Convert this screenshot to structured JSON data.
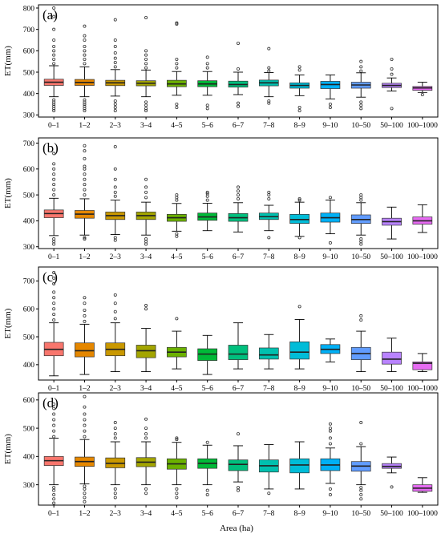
{
  "figure": {
    "xlabel": "Area (ha)",
    "ylabel": "ET(mm)"
  },
  "chart_data": [
    {
      "type": "box",
      "panel_label": "(a)",
      "categories": [
        "0–1",
        "1–2",
        "2–3",
        "3–4",
        "4–5",
        "5–6",
        "6–7",
        "7–8",
        "8–9",
        "9–10",
        "10–50",
        "50–100",
        "100–1000"
      ],
      "ylabel": "ET(mm)",
      "ylim": [
        290,
        815
      ],
      "yticks": [
        300,
        400,
        500,
        600,
        700,
        800
      ],
      "boxes": [
        {
          "low": 385,
          "q1": 438,
          "median": 453,
          "q3": 467,
          "high": 530,
          "outliers": [
            320,
            330,
            340,
            350,
            360,
            370,
            540,
            560,
            580,
            600,
            620,
            650,
            700,
            760,
            800
          ]
        },
        {
          "low": 385,
          "q1": 438,
          "median": 452,
          "q3": 466,
          "high": 525,
          "outliers": [
            320,
            330,
            340,
            350,
            360,
            370,
            540,
            560,
            580,
            600,
            620,
            650,
            670,
            715
          ]
        },
        {
          "low": 388,
          "q1": 437,
          "median": 450,
          "q3": 462,
          "high": 512,
          "outliers": [
            320,
            335,
            350,
            365,
            525,
            545,
            565,
            590,
            620,
            650,
            745
          ]
        },
        {
          "low": 385,
          "q1": 436,
          "median": 448,
          "q3": 460,
          "high": 510,
          "outliers": [
            320,
            330,
            345,
            360,
            520,
            540,
            560,
            580,
            600,
            755
          ]
        },
        {
          "low": 392,
          "q1": 432,
          "median": 445,
          "q3": 462,
          "high": 503,
          "outliers": [
            335,
            350,
            520,
            540,
            560,
            725,
            730
          ]
        },
        {
          "low": 392,
          "q1": 432,
          "median": 445,
          "q3": 460,
          "high": 503,
          "outliers": [
            330,
            345,
            520,
            540,
            570
          ]
        },
        {
          "low": 395,
          "q1": 430,
          "median": 442,
          "q3": 458,
          "high": 500,
          "outliers": [
            340,
            355,
            515,
            635
          ]
        },
        {
          "low": 385,
          "q1": 436,
          "median": 450,
          "q3": 463,
          "high": 498,
          "outliers": [
            355,
            365,
            505,
            520,
            610
          ]
        },
        {
          "low": 390,
          "q1": 425,
          "median": 438,
          "q3": 450,
          "high": 487,
          "outliers": [
            320,
            335,
            510,
            525
          ]
        },
        {
          "low": 375,
          "q1": 423,
          "median": 442,
          "q3": 457,
          "high": 487,
          "outliers": [
            335,
            350
          ]
        },
        {
          "low": 383,
          "q1": 425,
          "median": 440,
          "q3": 453,
          "high": 497,
          "outliers": [
            330,
            345,
            360,
            505,
            525,
            550
          ]
        },
        {
          "low": 412,
          "q1": 428,
          "median": 438,
          "q3": 448,
          "high": 473,
          "outliers": [
            330,
            490,
            515,
            560
          ]
        },
        {
          "low": 405,
          "q1": 415,
          "median": 426,
          "q3": 433,
          "high": 453,
          "outliers": [
            395
          ]
        }
      ]
    },
    {
      "type": "box",
      "panel_label": "(b)",
      "categories": [
        "0–1",
        "1–2",
        "2–3",
        "3–4",
        "4–5",
        "5–6",
        "6–7",
        "7–8",
        "8–9",
        "9–10",
        "10–50",
        "50–100",
        "100–1000"
      ],
      "ylabel": "ET(mm)",
      "ylim": [
        293,
        720
      ],
      "yticks": [
        300,
        400,
        500,
        600,
        700
      ],
      "boxes": [
        {
          "low": 343,
          "q1": 412,
          "median": 428,
          "q3": 442,
          "high": 487,
          "outliers": [
            310,
            320,
            330,
            500,
            520,
            540,
            560,
            580,
            600,
            620,
            660
          ]
        },
        {
          "low": 345,
          "q1": 410,
          "median": 426,
          "q3": 440,
          "high": 485,
          "outliers": [
            330,
            335,
            500,
            520,
            540,
            560,
            580,
            600,
            610,
            640,
            670,
            690
          ]
        },
        {
          "low": 347,
          "q1": 405,
          "median": 420,
          "q3": 434,
          "high": 480,
          "outliers": [
            325,
            335,
            495,
            510,
            530,
            560,
            600,
            686
          ]
        },
        {
          "low": 345,
          "q1": 405,
          "median": 420,
          "q3": 434,
          "high": 472,
          "outliers": [
            310,
            320,
            330,
            490,
            510,
            530,
            560
          ]
        },
        {
          "low": 360,
          "q1": 398,
          "median": 412,
          "q3": 425,
          "high": 467,
          "outliers": [
            340,
            350,
            480,
            490,
            500
          ]
        },
        {
          "low": 362,
          "q1": 402,
          "median": 415,
          "q3": 430,
          "high": 468,
          "outliers": [
            480,
            495,
            505,
            510
          ]
        },
        {
          "low": 357,
          "q1": 398,
          "median": 412,
          "q3": 428,
          "high": 470,
          "outliers": [
            485,
            500,
            515,
            530
          ]
        },
        {
          "low": 362,
          "q1": 405,
          "median": 416,
          "q3": 430,
          "high": 460,
          "outliers": [
            335,
            485,
            500,
            510
          ]
        },
        {
          "low": 340,
          "q1": 390,
          "median": 405,
          "q3": 425,
          "high": 472,
          "outliers": [
            335,
            480,
            485
          ]
        },
        {
          "low": 350,
          "q1": 395,
          "median": 412,
          "q3": 430,
          "high": 480,
          "outliers": [
            315,
            490
          ]
        },
        {
          "low": 345,
          "q1": 390,
          "median": 405,
          "q3": 423,
          "high": 470,
          "outliers": [
            310,
            320,
            330,
            480,
            490,
            500
          ]
        },
        {
          "low": 330,
          "q1": 383,
          "median": 397,
          "q3": 410,
          "high": 453,
          "outliers": []
        },
        {
          "low": 355,
          "q1": 387,
          "median": 400,
          "q3": 415,
          "high": 462,
          "outliers": []
        }
      ]
    },
    {
      "type": "box",
      "panel_label": "(c)",
      "categories": [
        "0–1",
        "1–2",
        "2–3",
        "3–4",
        "4–5",
        "5–6",
        "6–7",
        "7–8",
        "8–9",
        "9–10",
        "10–50",
        "50–100",
        "100–1000"
      ],
      "ylabel": "ET(mm)",
      "ylim": [
        345,
        750
      ],
      "yticks": [
        400,
        500,
        600,
        700
      ],
      "boxes": [
        {
          "low": 360,
          "q1": 432,
          "median": 455,
          "q3": 480,
          "high": 550,
          "outliers": [
            560,
            580,
            600,
            620,
            640,
            660,
            690,
            710,
            730
          ]
        },
        {
          "low": 365,
          "q1": 428,
          "median": 450,
          "q3": 478,
          "high": 545,
          "outliers": [
            555,
            575,
            595,
            620,
            640
          ]
        },
        {
          "low": 375,
          "q1": 432,
          "median": 455,
          "q3": 478,
          "high": 550,
          "outliers": [
            565,
            590,
            620,
            650
          ]
        },
        {
          "low": 375,
          "q1": 425,
          "median": 450,
          "q3": 470,
          "high": 530,
          "outliers": [
            600,
            612
          ]
        },
        {
          "low": 385,
          "q1": 428,
          "median": 445,
          "q3": 462,
          "high": 520,
          "outliers": [
            565
          ]
        },
        {
          "low": 365,
          "q1": 415,
          "median": 438,
          "q3": 457,
          "high": 505,
          "outliers": []
        },
        {
          "low": 385,
          "q1": 418,
          "median": 438,
          "q3": 470,
          "high": 550,
          "outliers": []
        },
        {
          "low": 385,
          "q1": 420,
          "median": 435,
          "q3": 460,
          "high": 508,
          "outliers": []
        },
        {
          "low": 385,
          "q1": 420,
          "median": 445,
          "q3": 482,
          "high": 562,
          "outliers": [
            608
          ]
        },
        {
          "low": 410,
          "q1": 440,
          "median": 455,
          "q3": 472,
          "high": 492,
          "outliers": []
        },
        {
          "low": 375,
          "q1": 418,
          "median": 440,
          "q3": 462,
          "high": 520,
          "outliers": [
            560,
            575
          ]
        },
        {
          "low": 375,
          "q1": 402,
          "median": 420,
          "q3": 445,
          "high": 495,
          "outliers": []
        },
        {
          "low": 375,
          "q1": 382,
          "median": 405,
          "q3": 410,
          "high": 440,
          "outliers": []
        }
      ]
    },
    {
      "type": "box",
      "panel_label": "(d)",
      "categories": [
        "0–1",
        "1–2",
        "2–3",
        "3–4",
        "4–5",
        "5–6",
        "6–7",
        "7–8",
        "8–9",
        "9–10",
        "10–50",
        "50–100",
        "100–1000"
      ],
      "ylabel": "ET(mm)",
      "ylim": [
        228,
        625
      ],
      "yticks": [
        300,
        400,
        500,
        600
      ],
      "boxes": [
        {
          "low": 300,
          "q1": 368,
          "median": 385,
          "q3": 400,
          "high": 465,
          "outliers": [
            235,
            250,
            265,
            280,
            290,
            470,
            490,
            510,
            530,
            550,
            570,
            585
          ]
        },
        {
          "low": 303,
          "q1": 365,
          "median": 382,
          "q3": 398,
          "high": 460,
          "outliers": [
            240,
            255,
            270,
            285,
            295,
            470,
            490,
            510,
            530,
            550,
            575,
            612
          ]
        },
        {
          "low": 300,
          "q1": 360,
          "median": 376,
          "q3": 395,
          "high": 452,
          "outliers": [
            255,
            270,
            285,
            465,
            480,
            500,
            520
          ]
        },
        {
          "low": 300,
          "q1": 364,
          "median": 380,
          "q3": 396,
          "high": 452,
          "outliers": [
            270,
            285,
            465,
            480,
            500,
            532
          ]
        },
        {
          "low": 300,
          "q1": 355,
          "median": 374,
          "q3": 392,
          "high": 450,
          "outliers": [
            255,
            270,
            285,
            460,
            465
          ]
        },
        {
          "low": 300,
          "q1": 358,
          "median": 376,
          "q3": 392,
          "high": 440,
          "outliers": [
            265,
            280,
            450
          ]
        },
        {
          "low": 310,
          "q1": 350,
          "median": 372,
          "q3": 388,
          "high": 438,
          "outliers": [
            280,
            290,
            480
          ]
        },
        {
          "low": 285,
          "q1": 345,
          "median": 367,
          "q3": 388,
          "high": 442,
          "outliers": [
            270
          ]
        },
        {
          "low": 285,
          "q1": 342,
          "median": 370,
          "q3": 392,
          "high": 452,
          "outliers": []
        },
        {
          "low": 305,
          "q1": 350,
          "median": 370,
          "q3": 392,
          "high": 430,
          "outliers": [
            265,
            285,
            445,
            465,
            490,
            500,
            515
          ]
        },
        {
          "low": 300,
          "q1": 348,
          "median": 366,
          "q3": 382,
          "high": 435,
          "outliers": [
            250,
            265,
            280,
            290,
            445,
            520
          ]
        },
        {
          "low": 342,
          "q1": 358,
          "median": 365,
          "q3": 375,
          "high": 398,
          "outliers": [
            292
          ]
        },
        {
          "low": 273,
          "q1": 277,
          "median": 288,
          "q3": 300,
          "high": 325,
          "outliers": []
        }
      ]
    }
  ],
  "colors": {
    "boxes": [
      "#F8766D",
      "#E58700",
      "#C99800",
      "#A3A500",
      "#6BB100",
      "#00BA38",
      "#00BF7D",
      "#00C0AF",
      "#00BCD8",
      "#00B0F6",
      "#619CFF",
      "#B983FF",
      "#E76BF3"
    ],
    "frame": "#000000",
    "whisker": "#000000",
    "outlier_stroke": "#333333"
  }
}
